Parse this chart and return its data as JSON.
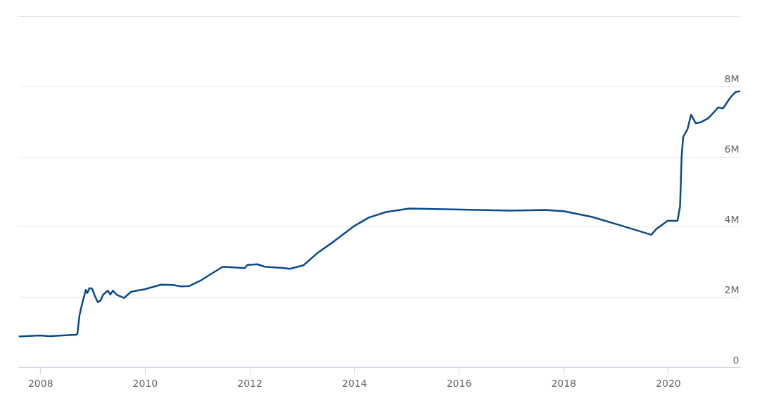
{
  "chart_data": {
    "type": "line",
    "x": [
      2007.59,
      2007.99,
      2008.18,
      2008.68,
      2008.71,
      2008.75,
      2008.8,
      2008.87,
      2008.9,
      2008.94,
      2008.99,
      2009.04,
      2009.1,
      2009.15,
      2009.2,
      2009.29,
      2009.34,
      2009.39,
      2009.46,
      2009.54,
      2009.6,
      2009.74,
      2010.0,
      2010.31,
      2010.54,
      2010.69,
      2010.85,
      2011.06,
      2011.25,
      2011.49,
      2011.91,
      2011.96,
      2012.15,
      2012.29,
      2012.67,
      2012.77,
      2013.03,
      2013.29,
      2013.62,
      2013.99,
      2014.28,
      2014.61,
      2015.05,
      2016.04,
      2016.99,
      2017.65,
      2018.02,
      2018.55,
      2019.11,
      2019.68,
      2019.78,
      2019.99,
      2020.18,
      2020.23,
      2020.26,
      2020.29,
      2020.37,
      2020.44,
      2020.53,
      2020.63,
      2020.77,
      2020.96,
      2021.05,
      2021.19,
      2021.29,
      2021.38
    ],
    "series": [
      {
        "color": "#0a4a8a",
        "values": [
          870000,
          900000,
          880000,
          920000,
          950000,
          1480000,
          1800000,
          2200000,
          2110000,
          2250000,
          2240000,
          2040000,
          1850000,
          1890000,
          2060000,
          2180000,
          2070000,
          2180000,
          2060000,
          2010000,
          1970000,
          2150000,
          2220000,
          2350000,
          2340000,
          2300000,
          2310000,
          2460000,
          2640000,
          2860000,
          2820000,
          2910000,
          2930000,
          2860000,
          2820000,
          2800000,
          2900000,
          3240000,
          3590000,
          4010000,
          4260000,
          4420000,
          4520000,
          4490000,
          4460000,
          4480000,
          4440000,
          4280000,
          4030000,
          3770000,
          3940000,
          4170000,
          4170000,
          4580000,
          6000000,
          6560000,
          6770000,
          7190000,
          6950000,
          6980000,
          7090000,
          7400000,
          7370000,
          7680000,
          7840000,
          7860000
        ]
      }
    ],
    "xlim": [
      2007.58,
      2021.38
    ],
    "xticks": [
      2008,
      2010,
      2012,
      2014,
      2016,
      2018,
      2020
    ],
    "ylim": [
      0,
      10000000
    ],
    "yticks": [
      0,
      {
        "value": 2000000,
        "label": "2M"
      },
      {
        "value": 4000000,
        "label": "4M"
      },
      {
        "value": 6000000,
        "label": "6M"
      },
      {
        "value": 8000000,
        "label": "8M"
      },
      {
        "value": 10000000,
        "label": null
      }
    ],
    "grid": "y",
    "marker": "none",
    "line_style": "solid"
  }
}
